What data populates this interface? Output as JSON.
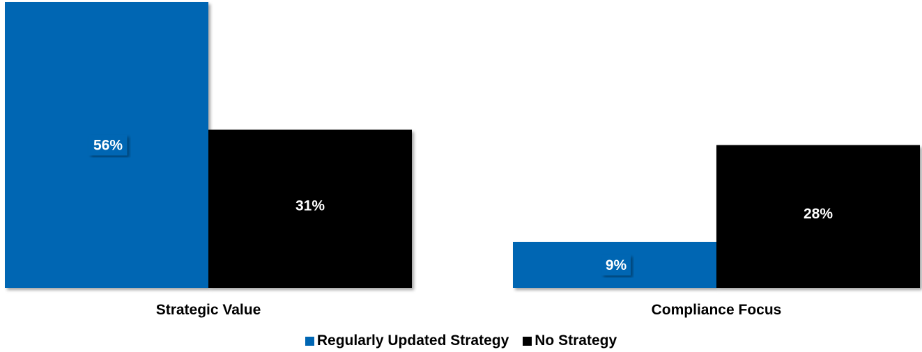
{
  "chart_data": {
    "type": "bar",
    "categories": [
      "Strategic Value",
      "Compliance Focus"
    ],
    "series": [
      {
        "name": "Regularly Updated Strategy",
        "values": [
          56,
          9
        ],
        "labels": [
          "56%",
          "9%"
        ],
        "color": "#0066b3"
      },
      {
        "name": "No Strategy",
        "values": [
          31,
          28
        ],
        "labels": [
          "31%",
          "28%"
        ],
        "color": "#000000"
      }
    ],
    "ylim": [
      0,
      56
    ],
    "grid": false,
    "legend_position": "bottom",
    "value_label_style": "boxed"
  }
}
